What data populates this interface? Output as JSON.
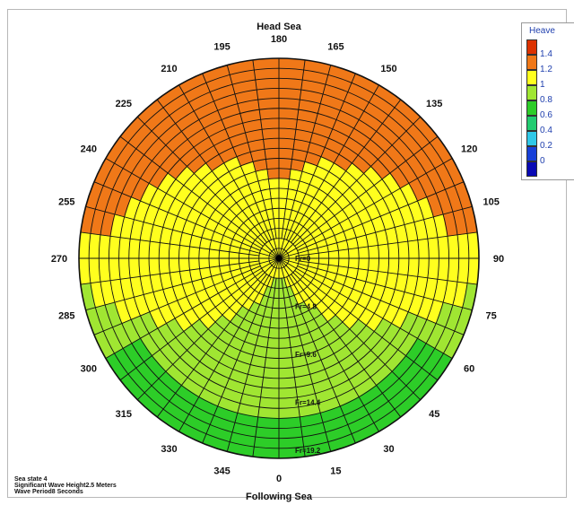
{
  "chart_data": {
    "type": "heatmap",
    "title": "Head Sea",
    "bottom_title": "Following Sea",
    "angle_labels": [
      "0",
      "15",
      "30",
      "45",
      "60",
      "75",
      "90",
      "105",
      "120",
      "135",
      "150",
      "165",
      "180",
      "195",
      "210",
      "225",
      "240",
      "255",
      "270",
      "285",
      "300",
      "315",
      "330",
      "345"
    ],
    "radial_labels": [
      "Fr=0",
      "Fr=4.8",
      "Fr=9.6",
      "Fr=14.4",
      "Fr=19.2"
    ],
    "radial_values": [
      0,
      4.8,
      9.6,
      14.4,
      19.2
    ],
    "colorbar": {
      "title": "Heave",
      "ticks": [
        "1.4",
        "1.2",
        "1",
        "0.8",
        "0.6",
        "0.4",
        "0.2",
        "0"
      ],
      "colors": [
        "#dc3200",
        "#f07818",
        "#ffff1e",
        "#a0e632",
        "#2dcd28",
        "#22cc70",
        "#30c8e8",
        "#1840d8",
        "#0a0ab4"
      ]
    },
    "zones": {
      "orange_boundary_inner": 0.37,
      "green_boundary_sides": 0.45,
      "green_boundary_bottom": 0.08,
      "deep_green_boundary": 0.78,
      "deep_green_angle_span": 62
    }
  },
  "sea_state": {
    "line1": "Sea state 4",
    "line2": "Significant Wave Height2.5 Meters",
    "line3": "Wave Period8 Seconds"
  }
}
